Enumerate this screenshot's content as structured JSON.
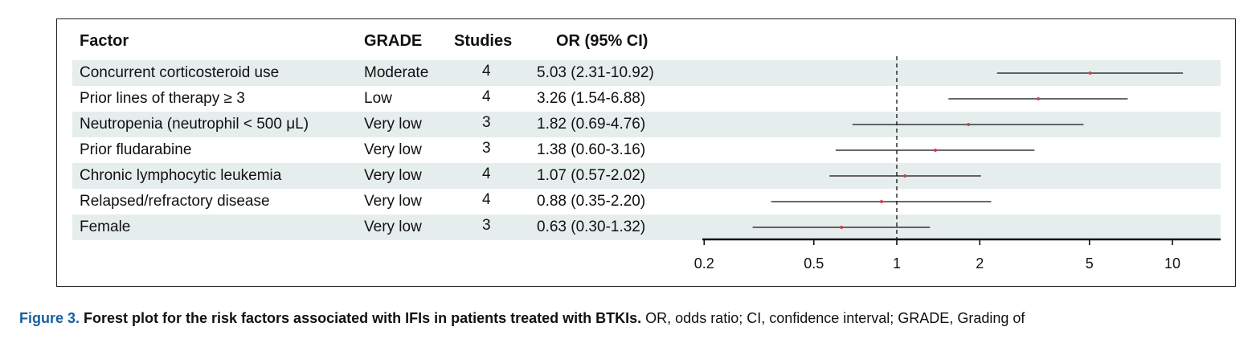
{
  "table": {
    "headers": {
      "factor": "Factor",
      "grade": "GRADE",
      "studies": "Studies",
      "or": "OR (95% CI)"
    },
    "rows": [
      {
        "factor": "Concurrent corticosteroid use",
        "grade": "Moderate",
        "studies": "4",
        "or_text": "5.03 (2.31-10.92)"
      },
      {
        "factor": "Prior lines of therapy ≥ 3",
        "grade": "Low",
        "studies": "4",
        "or_text": "3.26 (1.54-6.88)"
      },
      {
        "factor": "Neutropenia (neutrophil < 500 μL)",
        "grade": "Very low",
        "studies": "3",
        "or_text": "1.82 (0.69-4.76)"
      },
      {
        "factor": "Prior fludarabine",
        "grade": "Very low",
        "studies": "3",
        "or_text": "1.38 (0.60-3.16)"
      },
      {
        "factor": "Chronic lymphocytic leukemia",
        "grade": "Very low",
        "studies": "4",
        "or_text": "1.07 (0.57-2.02)"
      },
      {
        "factor": "Relapsed/refractory disease",
        "grade": "Very low",
        "studies": "4",
        "or_text": "0.88 (0.35-2.20)"
      },
      {
        "factor": "Female",
        "grade": "Very low",
        "studies": "3",
        "or_text": "0.63 (0.30-1.32)"
      }
    ]
  },
  "chart_data": {
    "type": "forest",
    "x_scale": "log",
    "xlim": [
      0.2,
      12
    ],
    "reference_line": 1,
    "x_ticks": [
      "0.2",
      "0.5",
      "1",
      "2",
      "5",
      "10"
    ],
    "series": [
      {
        "label": "Concurrent corticosteroid use",
        "or": 5.03,
        "lo": 2.31,
        "hi": 10.92
      },
      {
        "label": "Prior lines of therapy ≥ 3",
        "or": 3.26,
        "lo": 1.54,
        "hi": 6.88
      },
      {
        "label": "Neutropenia (neutrophil < 500 μL)",
        "or": 1.82,
        "lo": 0.69,
        "hi": 4.76
      },
      {
        "label": "Prior fludarabine",
        "or": 1.38,
        "lo": 0.6,
        "hi": 3.16
      },
      {
        "label": "Chronic lymphocytic leukemia",
        "or": 1.07,
        "lo": 0.57,
        "hi": 2.02
      },
      {
        "label": "Relapsed/refractory disease",
        "or": 0.88,
        "lo": 0.35,
        "hi": 2.2
      },
      {
        "label": "Female",
        "or": 0.63,
        "lo": 0.3,
        "hi": 1.32
      }
    ],
    "colors": {
      "stripe": "#e6eded",
      "line": "#111111",
      "point": "#d0404a"
    }
  },
  "caption": {
    "lead": "Figure 3.",
    "title": " Forest plot for the risk factors associated with IFIs in patients treated with BTKIs.",
    "rest": " OR, odds ratio; CI, confidence interval; GRADE, Grading of"
  }
}
